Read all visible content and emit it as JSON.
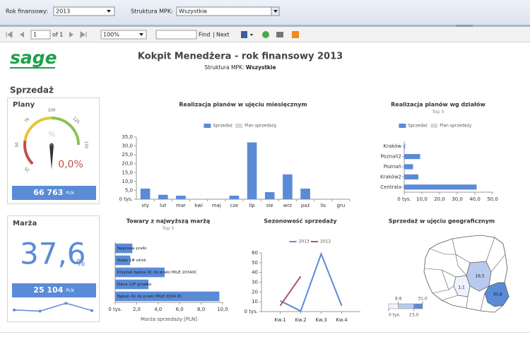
{
  "toolbar": {
    "year_label": "Rok finansowy:",
    "year": "2013",
    "mpk_label": "Struktura MPK:",
    "mpk": "Wszystkie"
  },
  "pager": {
    "page": "1",
    "of": "of 1",
    "zoom": "100%",
    "find": "Find",
    "separator": "|",
    "next": "Next"
  },
  "header": {
    "logo": "sage",
    "title": "Kokpit Menedżera - rok finansowy 2013",
    "subtitle": "Struktura MPK:",
    "subtitle_value": "Wszystkie"
  },
  "section": "Sprzedaż",
  "plany": {
    "title": "Plany",
    "type": "gauge",
    "ylim": [
      0,
      150
    ],
    "ticks": [
      25,
      50,
      75,
      100,
      125,
      150
    ],
    "bands": [
      {
        "from": 25,
        "to": 55,
        "color": "#c0504d"
      },
      {
        "from": 55,
        "to": 100,
        "color": "#e8c33a"
      },
      {
        "from": 100,
        "to": 150,
        "color": "#8cc152"
      }
    ],
    "value": 0,
    "value_label": "0,0%",
    "unit_hint": "%",
    "total": "66 763",
    "currency": "PLN"
  },
  "marza": {
    "title": "Marża",
    "value": "37,6",
    "unit": "%",
    "total": "25 104",
    "currency": "PLN",
    "sparkline": {
      "type": "line",
      "values": [
        2,
        1,
        8,
        1.5
      ],
      "ylim": [
        0,
        10
      ],
      "color": "#5b8bd6"
    }
  },
  "chart_data": [
    {
      "type": "bar",
      "title": "Realizacja planów w ujęciu miesięcznym",
      "categories": [
        "sty",
        "lut",
        "mar",
        "kwi",
        "maj",
        "cze",
        "lip",
        "sie",
        "wrz",
        "paź",
        "lis",
        "gru"
      ],
      "series": [
        {
          "name": "Sprzedaż",
          "color": "#5b8bd6",
          "values": [
            6,
            2.5,
            2,
            0,
            0,
            2,
            32,
            4,
            14,
            6,
            0,
            0
          ]
        },
        {
          "name": "Plan sprzedaży",
          "color": "#d9d9d9",
          "values": [
            null,
            null,
            null,
            null,
            null,
            null,
            null,
            null,
            null,
            null,
            null,
            null
          ]
        }
      ],
      "ylim": [
        0,
        35
      ],
      "yticks": [
        {
          "value": 0,
          "label": "0 tys."
        },
        {
          "value": 5,
          "label": "5,0"
        },
        {
          "value": 10,
          "label": "10,0"
        },
        {
          "value": 15,
          "label": "15,0"
        },
        {
          "value": 20,
          "label": "20,0"
        },
        {
          "value": 25,
          "label": "25,0"
        },
        {
          "value": 30,
          "label": "30,0"
        },
        {
          "value": 35,
          "label": "35,0"
        }
      ]
    },
    {
      "type": "hbar",
      "title": "Realizacja planów wg działów",
      "subtitle": "Top 5",
      "categories": [
        "Kraków",
        "Poznań2",
        "Poznań",
        "Kraków2",
        "Centrala"
      ],
      "series": [
        {
          "name": "Sprzedaż",
          "color": "#5b8bd6",
          "values": [
            0.5,
            9,
            5,
            8,
            41
          ]
        },
        {
          "name": "Plan sprzedaży",
          "color": "#d9d9d9",
          "values": [
            null,
            null,
            null,
            null,
            null
          ]
        }
      ],
      "xlim": [
        0,
        50
      ],
      "xticks": [
        {
          "value": 0,
          "label": "0 tys."
        },
        {
          "value": 10,
          "label": "10,0"
        },
        {
          "value": 20,
          "label": "20,0"
        },
        {
          "value": 30,
          "label": "30,0"
        },
        {
          "value": 40,
          "label": "40,0"
        },
        {
          "value": 50,
          "label": "50,0"
        }
      ]
    },
    {
      "type": "hbar",
      "title": "Towary z najwyższą marżą",
      "subtitle": "Top 5",
      "labels_inside": true,
      "color": "#5b8bd6",
      "categories": [
        "Naprawa pralki",
        "Anles 1# silnik",
        "Krzyżak bębna XC do pralki MILE 2034XC",
        "Dana 12F grzałka",
        "Bęben A1 do pralki MILE 2034 XC"
      ],
      "values": [
        1.6,
        1.4,
        4.6,
        3.1,
        9.7
      ],
      "xlim": [
        0,
        10
      ],
      "xticks": [
        {
          "value": 0,
          "label": "0 tys."
        },
        {
          "value": 2,
          "label": "2,0"
        },
        {
          "value": 4,
          "label": "4,0"
        },
        {
          "value": 6,
          "label": "6,0"
        },
        {
          "value": 8,
          "label": "8,0"
        },
        {
          "value": 10,
          "label": "10,0"
        }
      ],
      "x_label": "Marża sprzedaży [PLN]"
    },
    {
      "type": "line",
      "title": "Sezonowość sprzedaży",
      "categories": [
        "Kw.1",
        "Kw.2",
        "Kw.3",
        "Kw.4"
      ],
      "series": [
        {
          "name": "2013",
          "color": "#5b8bd6",
          "values": [
            11,
            0.5,
            59,
            6
          ]
        },
        {
          "name": "2012",
          "color": "#b0506e",
          "values": [
            6,
            36,
            null,
            null
          ]
        }
      ],
      "ylim": [
        0,
        60
      ],
      "yticks": [
        {
          "value": 0,
          "label": "0 tys."
        },
        10,
        20,
        30,
        40,
        50,
        60
      ]
    },
    {
      "type": "map",
      "title": "Sprzedaż w ujęciu geograficznym",
      "values": [
        16.5,
        1.1,
        30.8
      ],
      "value_labels": [
        "16,5",
        "1,1",
        "30,8"
      ],
      "scale": [
        {
          "value": 0,
          "label": "0 tys."
        },
        {
          "value": 8.8,
          "label": "8,8"
        },
        {
          "value": 23,
          "label": "23,0"
        },
        {
          "value": 31,
          "label": "31,0"
        }
      ],
      "colors": [
        "#eef3fb",
        "#b8cbee",
        "#5b8bd6"
      ]
    }
  ]
}
